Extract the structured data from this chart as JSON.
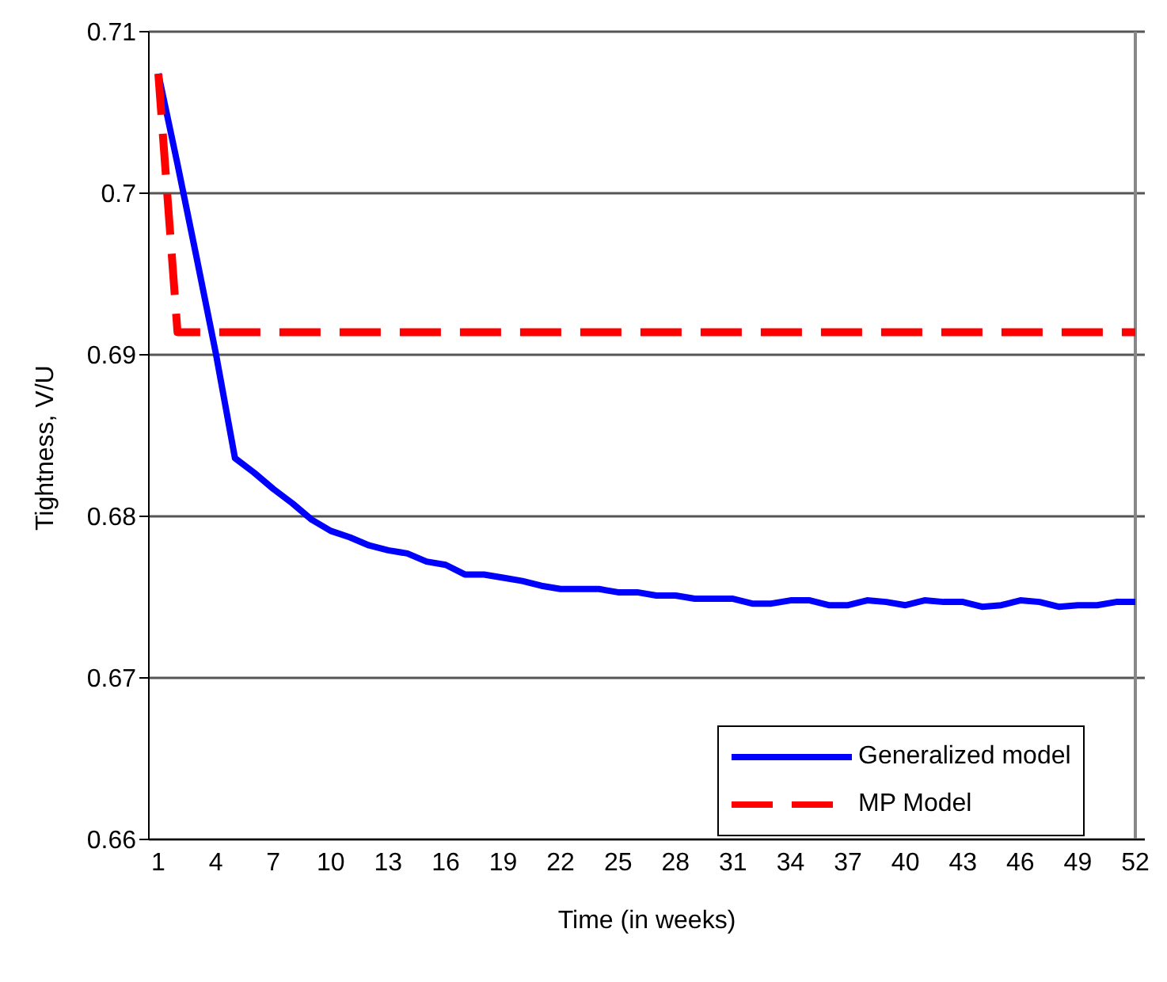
{
  "chart_data": {
    "type": "line",
    "xlabel": "Time (in weeks)",
    "ylabel": "Tightness, V/U",
    "categories": [
      "1",
      null,
      null,
      "4",
      null,
      null,
      "7",
      null,
      null,
      "10",
      null,
      null,
      "13",
      null,
      null,
      "16",
      null,
      null,
      "19",
      null,
      null,
      "22",
      null,
      null,
      "25",
      null,
      null,
      "28",
      null,
      null,
      "31",
      null,
      null,
      "34",
      null,
      null,
      "37",
      null,
      null,
      "40",
      null,
      null,
      "43",
      null,
      null,
      "46",
      null,
      null,
      "49",
      null,
      null,
      "52"
    ],
    "series": [
      {
        "name": "Generalized model",
        "color": "#0000ff",
        "line_style": "solid",
        "values": [
          0.7074,
          0.7018,
          0.696,
          0.6901,
          0.6836,
          0.6827,
          0.6817,
          0.6808,
          0.6798,
          0.6791,
          0.6787,
          0.6782,
          0.6779,
          0.6777,
          0.6772,
          0.677,
          0.6764,
          0.6764,
          0.6762,
          0.676,
          0.6757,
          0.6755,
          0.6755,
          0.6755,
          0.6753,
          0.6753,
          0.6751,
          0.6751,
          0.6749,
          0.6749,
          0.6749,
          0.6746,
          0.6746,
          0.6748,
          0.6748,
          0.6745,
          0.6745,
          0.6748,
          0.6747,
          0.6745,
          0.6748,
          0.6747,
          0.6747,
          0.6744,
          0.6745,
          0.6748,
          0.6747,
          0.6744,
          0.6745,
          0.6745,
          0.6747,
          0.6747
        ]
      },
      {
        "name": "MP Model",
        "color": "#ff0000",
        "line_style": "dashed",
        "values": [
          0.7074,
          0.6914,
          0.6914,
          0.6914,
          0.6914,
          0.6914,
          0.6914,
          0.6914,
          0.6914,
          0.6914,
          0.6914,
          0.6914,
          0.6914,
          0.6914,
          0.6914,
          0.6914,
          0.6914,
          0.6914,
          0.6914,
          0.6914,
          0.6914,
          0.6914,
          0.6914,
          0.6914,
          0.6914,
          0.6914,
          0.6914,
          0.6914,
          0.6914,
          0.6914,
          0.6914,
          0.6914,
          0.6914,
          0.6914,
          0.6914,
          0.6914,
          0.6914,
          0.6914,
          0.6914,
          0.6914,
          0.6914,
          0.6914,
          0.6914,
          0.6914,
          0.6914,
          0.6914,
          0.6914,
          0.6914,
          0.6914,
          0.6914,
          0.6914,
          0.6914
        ]
      }
    ],
    "ylim": [
      0.66,
      0.71
    ],
    "yticks": [
      0.66,
      0.67,
      0.68,
      0.69,
      0.7,
      0.71
    ],
    "grid": "y",
    "legend": "bottom right",
    "marker": "none"
  }
}
